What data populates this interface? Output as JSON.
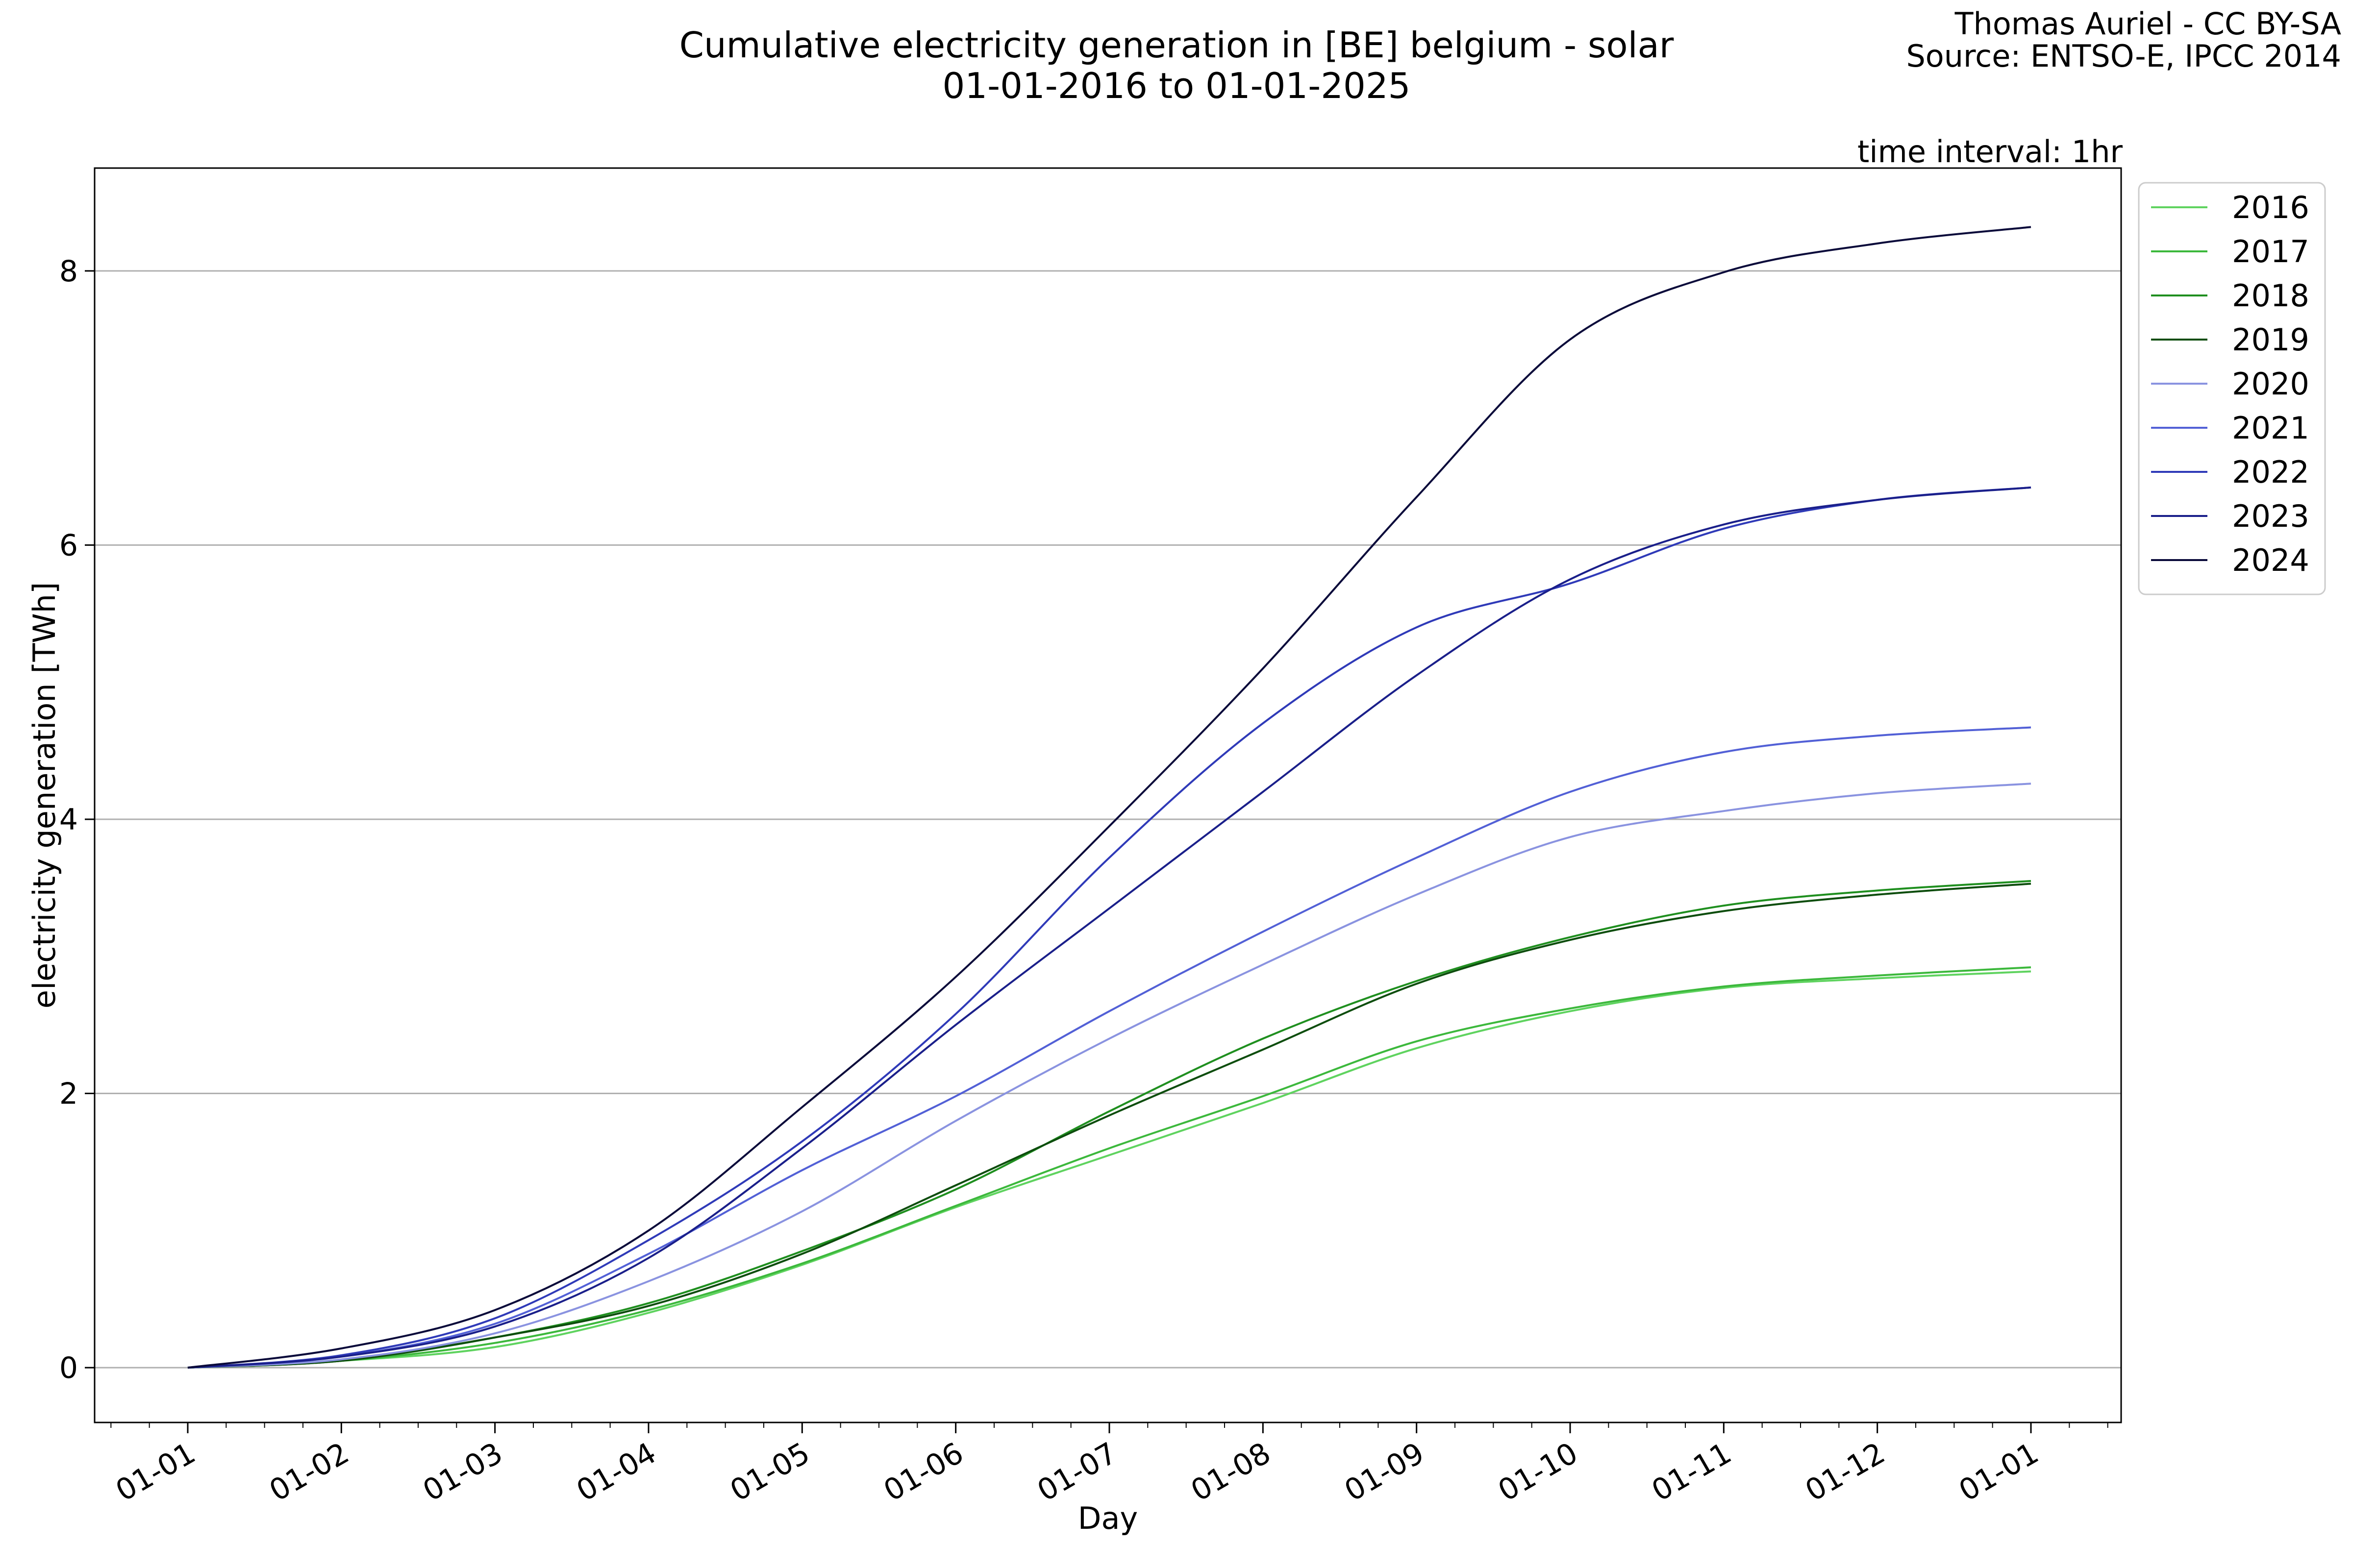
{
  "header": {
    "title_line1": "Cumulative electricity generation in [BE] belgium - solar",
    "title_line2": "01-01-2016 to 01-01-2025",
    "credit_line1": "Thomas Auriel - CC BY-SA",
    "credit_line2": "Source: ENTSO-E, IPCC 2014",
    "interval": "time interval: 1hr"
  },
  "chart_data": {
    "type": "line",
    "xlabel": "Day",
    "ylabel": "electricity generation [TWh]",
    "x_axis": "day of year",
    "x_ticks": [
      "01-01",
      "01-02",
      "01-03",
      "01-04",
      "01-05",
      "01-06",
      "01-07",
      "01-08",
      "01-09",
      "01-10",
      "01-11",
      "01-12",
      "01-01"
    ],
    "y_ticks": [
      "0",
      "2",
      "4",
      "6",
      "8"
    ],
    "ylim": [
      -0.4,
      8.75
    ],
    "grid": "horizontal",
    "legend_position": "outside-right-top",
    "x": [
      "01-01",
      "01-02",
      "01-03",
      "01-04",
      "01-05",
      "01-06",
      "01-07",
      "01-08",
      "01-09",
      "01-10",
      "01-11",
      "01-12",
      "31-12"
    ],
    "series": [
      {
        "name": "2016",
        "color": "#5fd35f",
        "values": [
          0,
          0.05,
          0.15,
          0.4,
          0.75,
          1.17,
          1.55,
          1.93,
          2.33,
          2.6,
          2.77,
          2.84,
          2.89
        ]
      },
      {
        "name": "2017",
        "color": "#3cb83c",
        "values": [
          0,
          0.05,
          0.18,
          0.42,
          0.76,
          1.18,
          1.6,
          1.98,
          2.38,
          2.62,
          2.78,
          2.86,
          2.92
        ]
      },
      {
        "name": "2018",
        "color": "#1f8f1f",
        "values": [
          0,
          0.05,
          0.22,
          0.47,
          0.85,
          1.3,
          1.87,
          2.4,
          2.82,
          3.14,
          3.37,
          3.48,
          3.55
        ]
      },
      {
        "name": "2019",
        "color": "#0d4d0d",
        "values": [
          0,
          0.05,
          0.22,
          0.45,
          0.83,
          1.33,
          1.84,
          2.32,
          2.8,
          3.12,
          3.33,
          3.45,
          3.53
        ]
      },
      {
        "name": "2020",
        "color": "#8a93e0",
        "values": [
          0,
          0.06,
          0.25,
          0.63,
          1.14,
          1.8,
          2.4,
          2.94,
          3.45,
          3.87,
          4.06,
          4.19,
          4.26
        ]
      },
      {
        "name": "2021",
        "color": "#5260d6",
        "values": [
          0,
          0.08,
          0.32,
          0.83,
          1.44,
          1.98,
          2.6,
          3.18,
          3.72,
          4.2,
          4.49,
          4.61,
          4.67
        ]
      },
      {
        "name": "2022",
        "color": "#2f3ab8",
        "values": [
          0,
          0.09,
          0.36,
          0.93,
          1.65,
          2.58,
          3.72,
          4.7,
          5.4,
          5.72,
          6.12,
          6.33,
          6.42
        ]
      },
      {
        "name": "2023",
        "color": "#1a1f8a",
        "values": [
          0,
          0.08,
          0.3,
          0.8,
          1.6,
          2.5,
          3.35,
          4.2,
          5.05,
          5.75,
          6.15,
          6.33,
          6.42
        ]
      },
      {
        "name": "2024",
        "color": "#0a0a3a",
        "values": [
          0,
          0.14,
          0.42,
          1.0,
          1.9,
          2.85,
          3.95,
          5.1,
          6.35,
          7.5,
          7.99,
          8.2,
          8.32
        ]
      }
    ]
  }
}
